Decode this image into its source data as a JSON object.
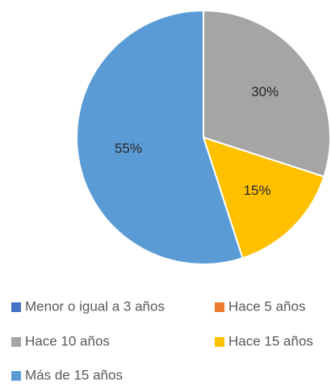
{
  "chart_data": {
    "type": "pie",
    "categories": [
      "Menor o igual a 3 años",
      "Hace 5 años",
      "Hace 10 años",
      "Hace 15 años",
      "Más de 15 años"
    ],
    "values": [
      0,
      0,
      30,
      15,
      55
    ],
    "value_labels": [
      null,
      null,
      "30%",
      "15%",
      "55%"
    ],
    "colors": [
      "#4472c4",
      "#ed7d31",
      "#a5a5a5",
      "#ffc000",
      "#5b9bd5"
    ],
    "legend": "bottom"
  }
}
